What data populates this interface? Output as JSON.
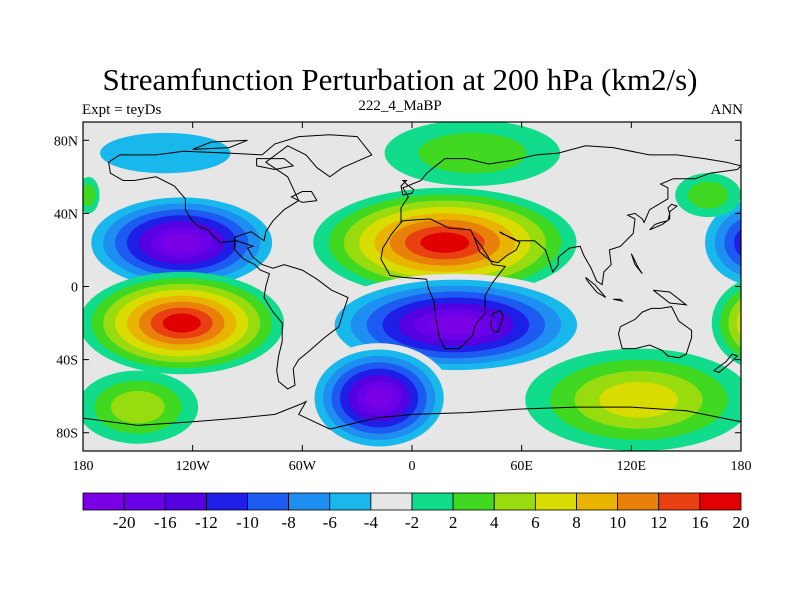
{
  "title": "Streamfunction Perturbation at 200 hPa (km2/s)",
  "left_label": "Expt = teyDs",
  "center_label": "222_4_MaBP",
  "right_label": "ANN",
  "map": {
    "projection": "cylindrical equidistant",
    "lon_range": [
      -180,
      180
    ],
    "lat_range": [
      -90,
      90
    ],
    "lat_ticks": [
      {
        "value": 80,
        "label": "80N"
      },
      {
        "value": 40,
        "label": "40N"
      },
      {
        "value": 0,
        "label": "0"
      },
      {
        "value": -40,
        "label": "40S"
      },
      {
        "value": -80,
        "label": "80S"
      }
    ],
    "lon_ticks": [
      {
        "value": -180,
        "label": "180"
      },
      {
        "value": -120,
        "label": "120W"
      },
      {
        "value": -60,
        "label": "60W"
      },
      {
        "value": 0,
        "label": "0"
      },
      {
        "value": 60,
        "label": "60E"
      },
      {
        "value": 120,
        "label": "120E"
      },
      {
        "value": 180,
        "label": "180"
      }
    ],
    "background_color": "#e6e6e6",
    "coastline_color": "#000000"
  },
  "features": [
    {
      "name": "nh-tropical-low-west",
      "lon": -126,
      "lat": 24,
      "rx": 56,
      "ry": 14,
      "level": -20
    },
    {
      "name": "nh-tropical-low-east",
      "lon": 190,
      "lat": 24,
      "rx": 35,
      "ry": 14,
      "level": -12
    },
    {
      "name": "nh-tropical-high",
      "lon": 18,
      "lat": 24,
      "rx": 72,
      "ry": 15,
      "level": 20
    },
    {
      "name": "sh-tropical-high-west",
      "lon": -126,
      "lat": -20,
      "rx": 56,
      "ry": 14,
      "level": 20
    },
    {
      "name": "sh-tropical-high-east",
      "lon": 194,
      "lat": -20,
      "rx": 30,
      "ry": 13,
      "level": 12
    },
    {
      "name": "sh-tropical-low",
      "lon": 24,
      "lat": -21,
      "rx": 75,
      "ry": 14,
      "level": -20
    },
    {
      "name": "high-lat-high-eurasia",
      "lon": 33,
      "lat": 73,
      "rx": 48,
      "ry": 9,
      "level": 4
    },
    {
      "name": "high-lat-low-america",
      "lon": -135,
      "lat": 73,
      "rx": 58,
      "ry": 9,
      "level": -4
    },
    {
      "name": "high-lat-high-pacific",
      "lon": 162,
      "lat": 50,
      "rx": 18,
      "ry": 6,
      "level": 4
    },
    {
      "name": "high-lat-high-pacific-w",
      "lon": -177,
      "lat": 50,
      "rx": 6,
      "ry": 5,
      "level": 4
    },
    {
      "name": "southern-low",
      "lon": -18,
      "lat": -61,
      "rx": 40,
      "ry": 15,
      "level": -20
    },
    {
      "name": "southern-high-east",
      "lon": 124,
      "lat": -62,
      "rx": 62,
      "ry": 14,
      "level": 8
    },
    {
      "name": "southern-high-west",
      "lon": -150,
      "lat": -66,
      "rx": 33,
      "ry": 10,
      "level": 6
    }
  ],
  "colorbar": {
    "colors": [
      "#7a00e6",
      "#6a00e8",
      "#5400e0",
      "#1e1ee6",
      "#1c5af2",
      "#1e8ef0",
      "#18b8ec",
      "#e6e6e6",
      "#10dc8c",
      "#40d820",
      "#98dc10",
      "#d8dc00",
      "#e8b400",
      "#e8800a",
      "#e84010",
      "#e00000"
    ],
    "thresholds": [
      -20,
      -16,
      -12,
      -10,
      -8,
      -6,
      -4,
      -2,
      2,
      4,
      6,
      8,
      10,
      12,
      16,
      20
    ],
    "labels": [
      "-20",
      "-16",
      "-12",
      "-10",
      "-8",
      "-6",
      "-4",
      "-2",
      "2",
      "4",
      "6",
      "8",
      "10",
      "12",
      "16",
      "20"
    ]
  }
}
